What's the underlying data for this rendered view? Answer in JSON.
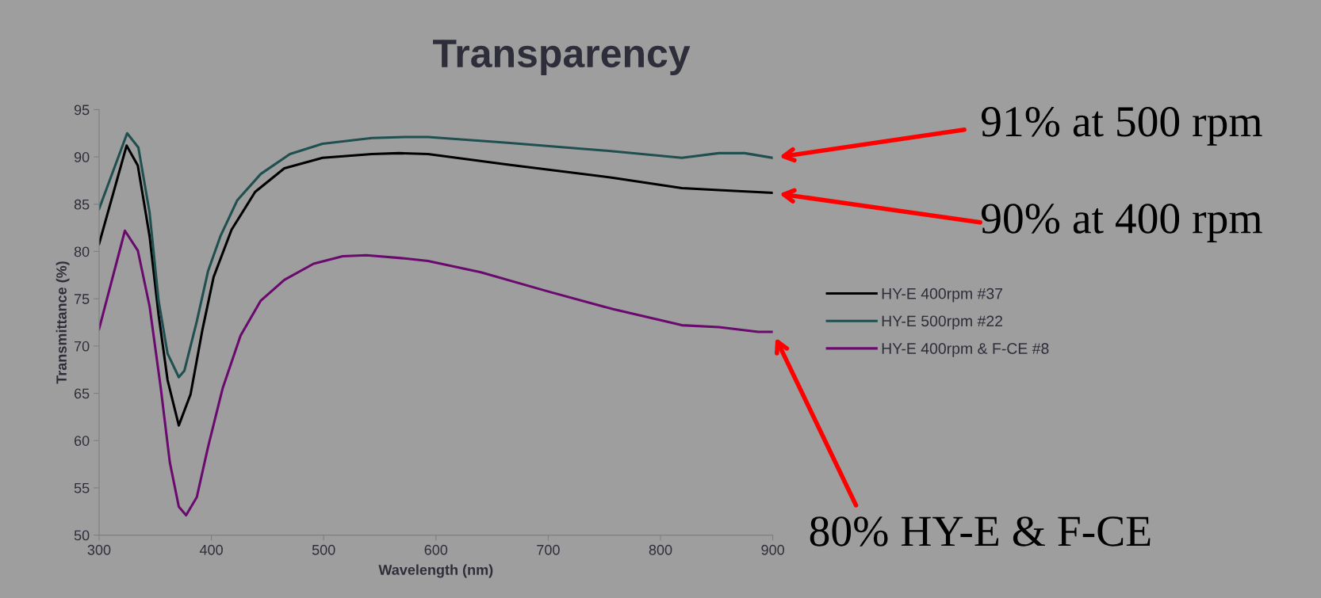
{
  "chart_data": {
    "type": "line",
    "title": "Transparency",
    "xlabel": "Wavelength (nm)",
    "ylabel": "Transmittance (%)",
    "xlim": [
      300,
      900
    ],
    "xticks": [
      300,
      400,
      500,
      600,
      700,
      800,
      900
    ],
    "ylim": [
      50,
      95
    ],
    "yticks": [
      50,
      55,
      60,
      65,
      70,
      75,
      80,
      85,
      90,
      95
    ],
    "grid": false,
    "legend": "right",
    "line_style": "solid",
    "marker": "none",
    "series": [
      {
        "name": "HY-E 400rpm #37",
        "color": "#000000",
        "x": [
          300,
          324.5,
          334.5,
          345,
          353,
          361,
          371,
          381.5,
          392,
          402,
          418,
          439,
          465,
          499,
          543,
          567,
          593,
          663.6,
          757.7,
          819,
          852,
          900
        ],
        "values": [
          80.8,
          91.2,
          89.1,
          81.6,
          73.3,
          66.4,
          61.6,
          64.9,
          71.7,
          77.3,
          82.3,
          86.3,
          88.8,
          89.9,
          90.3,
          90.4,
          90.3,
          89.2,
          87.8,
          86.7,
          86.5,
          86.2
        ]
      },
      {
        "name": "HY-E 500rpm #22",
        "color": "#1f4f4f",
        "x": [
          300,
          325,
          335,
          345,
          353,
          361,
          371,
          376,
          387,
          397,
          408,
          423,
          444,
          470,
          499,
          543,
          572,
          593,
          663.6,
          757.7,
          819,
          852,
          875,
          900
        ],
        "values": [
          84.5,
          92.5,
          91,
          84.1,
          74.8,
          69.2,
          66.7,
          67.4,
          72.6,
          77.9,
          81.6,
          85.4,
          88.2,
          90.3,
          91.4,
          92.0,
          92.1,
          92.1,
          91.5,
          90.6,
          89.9,
          90.4,
          90.4,
          89.9
        ]
      },
      {
        "name": "HY-E 400rpm & F-CE #8",
        "color": "#6a0a6e",
        "x": [
          300,
          323,
          334.5,
          345,
          355,
          363,
          371,
          377.5,
          387,
          397,
          410,
          426,
          444,
          465,
          491,
          517,
          538,
          569,
          593,
          640,
          699,
          757.7,
          819,
          852,
          887,
          900
        ],
        "values": [
          71.8,
          82.2,
          80.1,
          74.2,
          65.5,
          57.7,
          53.0,
          52.1,
          54.0,
          59.3,
          65.5,
          71.1,
          74.8,
          77.0,
          78.7,
          79.5,
          79.6,
          79.3,
          79.0,
          77.8,
          75.8,
          73.9,
          72.2,
          72.0,
          71.5,
          71.5
        ]
      }
    ],
    "annotations": [
      "91% at 500 rpm",
      "90% at 400 rpm",
      "80% HY-E & F-CE"
    ]
  }
}
